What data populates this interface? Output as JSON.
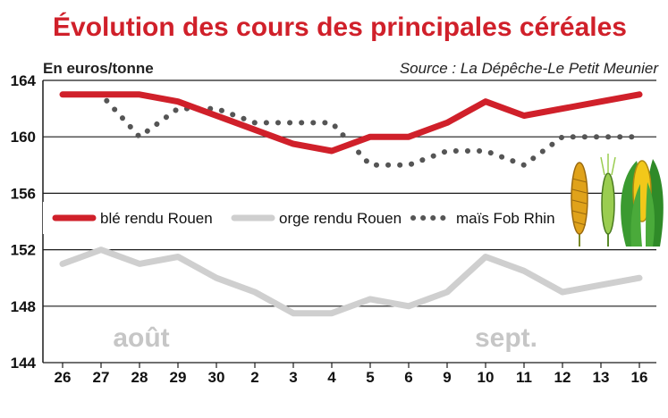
{
  "chart_data": {
    "type": "line",
    "title": "Évolution des cours des principales céréales",
    "unit_label": "En euros/tonne",
    "source": "Source : La Dépêche-Le Petit Meunier",
    "categories": [
      "26",
      "27",
      "28",
      "29",
      "30",
      "2",
      "3",
      "4",
      "5",
      "6",
      "9",
      "10",
      "11",
      "12",
      "13",
      "16"
    ],
    "ylim": [
      144,
      164
    ],
    "yticks": [
      144,
      148,
      152,
      156,
      160,
      164
    ],
    "grid": true,
    "legend_position": "middle",
    "month_labels": [
      "août",
      "sept."
    ],
    "series": [
      {
        "name": "blé rendu Rouen",
        "color": "#d0202a",
        "style": "solid",
        "values": [
          163,
          163,
          163,
          162.5,
          161.5,
          160.5,
          159.5,
          159,
          160,
          160,
          161,
          162.5,
          161.5,
          162,
          162.5,
          163
        ]
      },
      {
        "name": "orge rendu Rouen",
        "color": "#cfcfcf",
        "style": "solid",
        "values": [
          151,
          152,
          151,
          151.5,
          150,
          149,
          147.5,
          147.5,
          148.5,
          148,
          149,
          151.5,
          150.5,
          149,
          149.5,
          150
        ]
      },
      {
        "name": "maïs Fob Rhin",
        "color": "#555555",
        "style": "dotted",
        "values": [
          163,
          163,
          160,
          162,
          162,
          161,
          161,
          161,
          158,
          158,
          159,
          159,
          158,
          160,
          160,
          160
        ]
      }
    ]
  }
}
